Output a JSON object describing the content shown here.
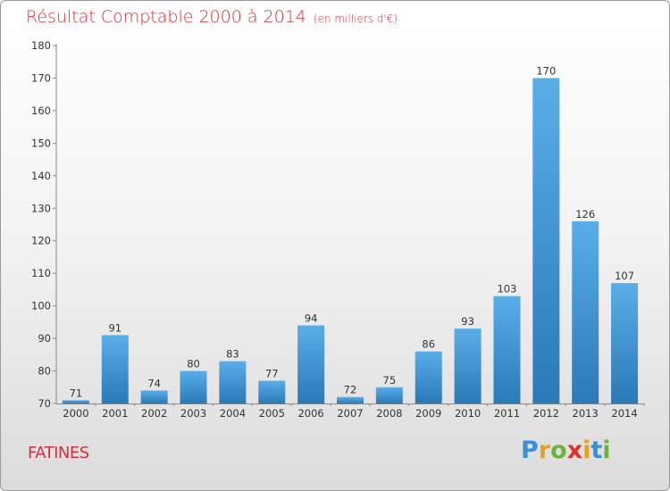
{
  "title": "Résultat Comptable 2000 à 2014",
  "subtitle": "(en milliers d'€)",
  "city": "FATINES",
  "logo": {
    "letters": [
      "P",
      "r",
      "o",
      "x",
      "i",
      "t",
      "i"
    ],
    "colors": [
      "#3a8fd6",
      "#e8a11c",
      "#6ab33f",
      "#d8322f",
      "#e8a11c",
      "#3a8fd6",
      "#6ab33f"
    ]
  },
  "colors": {
    "bar_top": "#5aaee8",
    "bar_bottom": "#2a79b8",
    "title": "#d42f3c"
  },
  "chart_data": {
    "type": "bar",
    "title": "Résultat Comptable 2000 à 2014",
    "xlabel": "",
    "ylabel": "",
    "categories": [
      "2000",
      "2001",
      "2002",
      "2003",
      "2004",
      "2005",
      "2006",
      "2007",
      "2008",
      "2009",
      "2010",
      "2011",
      "2012",
      "2013",
      "2014"
    ],
    "values": [
      71,
      91,
      74,
      80,
      83,
      77,
      94,
      72,
      75,
      86,
      93,
      103,
      170,
      126,
      107
    ],
    "ylim": [
      70,
      180
    ],
    "yticks": [
      70,
      80,
      90,
      100,
      110,
      120,
      130,
      140,
      150,
      160,
      170,
      180
    ],
    "grid": false
  }
}
